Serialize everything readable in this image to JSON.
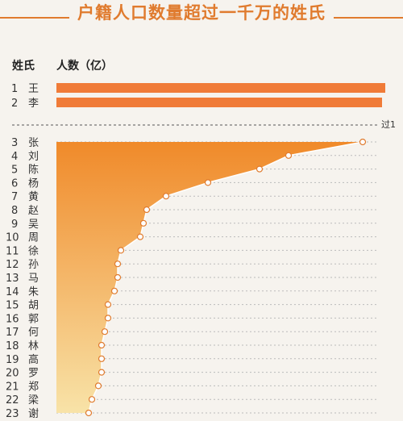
{
  "title": "户籍人口数量超过一千万的姓氏",
  "colors": {
    "accent": "#e07b2e",
    "bar": "#f07b38",
    "area_top": "#f08a2a",
    "area_bottom": "#f8e3a8"
  },
  "headers": {
    "surname": "姓氏",
    "population": "人数（亿）"
  },
  "break_label": "过1",
  "chart_data": {
    "type": "bar",
    "title": "户籍人口数量超过一千万的姓氏",
    "ylabel": "人数（亿）",
    "top_bars": [
      {
        "rank": "1",
        "name": "王",
        "value": 1.02
      },
      {
        "rank": "2",
        "name": "李",
        "value": 1.01
      }
    ],
    "area_series": [
      {
        "rank": "3",
        "name": "张",
        "value": 0.95
      },
      {
        "rank": "4",
        "name": "刘",
        "value": 0.72
      },
      {
        "rank": "5",
        "name": "陈",
        "value": 0.63
      },
      {
        "rank": "6",
        "name": "杨",
        "value": 0.47
      },
      {
        "rank": "7",
        "name": "黄",
        "value": 0.34
      },
      {
        "rank": "8",
        "name": "赵",
        "value": 0.28
      },
      {
        "rank": "9",
        "name": "吴",
        "value": 0.27
      },
      {
        "rank": "10",
        "name": "周",
        "value": 0.26
      },
      {
        "rank": "11",
        "name": "徐",
        "value": 0.2
      },
      {
        "rank": "12",
        "name": "孙",
        "value": 0.19
      },
      {
        "rank": "13",
        "name": "马",
        "value": 0.19
      },
      {
        "rank": "14",
        "name": "朱",
        "value": 0.18
      },
      {
        "rank": "15",
        "name": "胡",
        "value": 0.16
      },
      {
        "rank": "16",
        "name": "郭",
        "value": 0.16
      },
      {
        "rank": "17",
        "name": "何",
        "value": 0.15
      },
      {
        "rank": "18",
        "name": "林",
        "value": 0.14
      },
      {
        "rank": "19",
        "name": "高",
        "value": 0.14
      },
      {
        "rank": "20",
        "name": "罗",
        "value": 0.14
      },
      {
        "rank": "21",
        "name": "郑",
        "value": 0.13
      },
      {
        "rank": "22",
        "name": "梁",
        "value": 0.11
      },
      {
        "rank": "23",
        "name": "谢",
        "value": 0.1
      }
    ],
    "break_marker": "过1"
  }
}
